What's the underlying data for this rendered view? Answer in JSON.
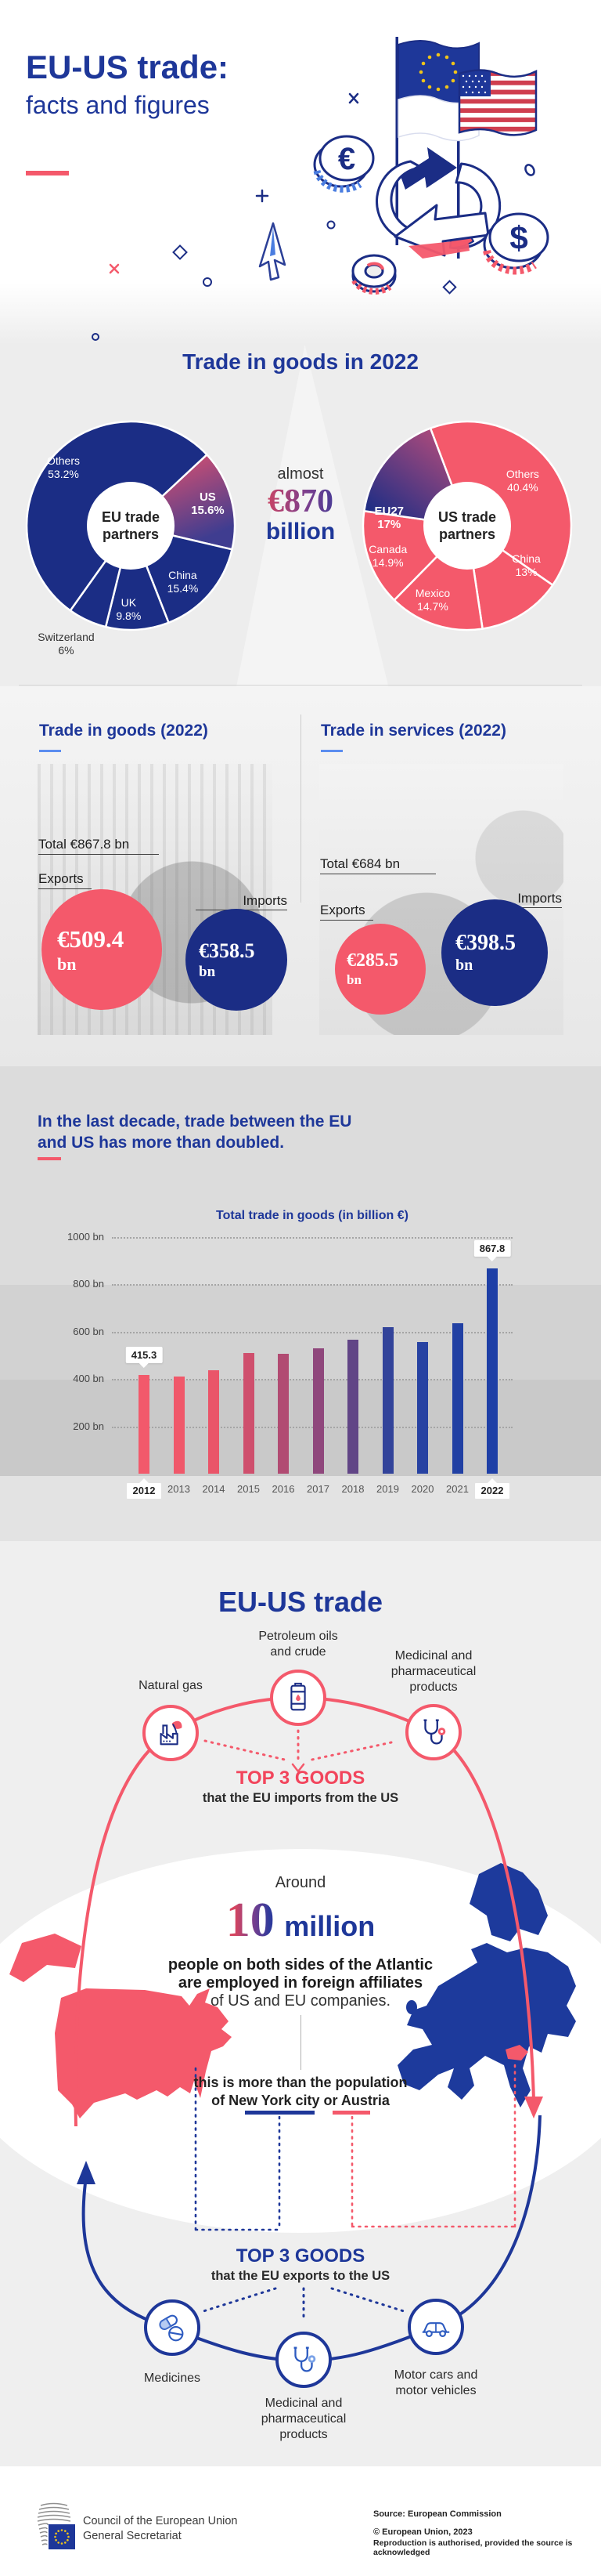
{
  "header": {
    "title_line1": "EU-US trade:",
    "title_line2": "facts and figures"
  },
  "goods_section": {
    "heading": "Trade in goods in 2022",
    "center_prefix": "almost",
    "center_amount": "€870",
    "center_unit": "billion",
    "eu_center_line1": "EU trade",
    "eu_center_line2": "partners",
    "us_center_line1": "US trade",
    "us_center_line2": "partners"
  },
  "cards": {
    "goods": {
      "title": "Trade in goods (2022)",
      "total": "Total €867.8 bn",
      "exports_label": "Exports",
      "exports_value": "€509.4",
      "exports_unit": "bn",
      "imports_label": "Imports",
      "imports_value": "€358.5",
      "imports_unit": "bn"
    },
    "services": {
      "title": "Trade in services (2022)",
      "total": "Total €684 bn",
      "exports_label": "Exports",
      "exports_value": "€285.5",
      "exports_unit": "bn",
      "imports_label": "Imports",
      "imports_value": "€398.5",
      "imports_unit": "bn"
    }
  },
  "decade_section": {
    "heading_line1": "In the last decade, trade between the EU",
    "heading_line2": "and US has more than doubled."
  },
  "flow_section": {
    "heading": "EU-US trade",
    "imports_top3": {
      "title": "TOP 3 GOODS",
      "subtitle": "that the EU imports from the US",
      "item1": "Natural gas",
      "item2": "Petroleum oils and crude",
      "item3": "Medicinal and pharmaceutical products"
    },
    "employment": {
      "around": "Around",
      "big_number": "10",
      "big_unit": "million",
      "line1": "people on both sides of the Atlantic",
      "line2": "are employed in foreign affiliates",
      "line3": "of US and EU companies.",
      "compare_line1": "this is more than the population",
      "compare_line2": "of New York city or Austria"
    },
    "exports_top3": {
      "title": "TOP 3 GOODS",
      "subtitle": "that the EU exports to the US",
      "item1": "Medicines",
      "item2": "Medicinal and pharmaceutical products",
      "item3": "Motor cars and motor vehicles"
    }
  },
  "footer": {
    "org_line1": "Council of the European Union",
    "org_line2": "General Secretariat",
    "source": "Source: European Commission",
    "copyright": "© European Union, 2023",
    "note": "Reproduction is authorised, provided the source is acknowledged"
  },
  "colors": {
    "blue": "#1e3799",
    "navy": "#1b2d85",
    "red": "#f4596b",
    "text_dark": "#222222"
  },
  "chart_data": [
    {
      "type": "pie",
      "name": "eu-trade-partners",
      "center_label": "EU trade partners",
      "slices": [
        {
          "label": "US",
          "value": 15.6,
          "pct_text": "15.6%",
          "color": "gradient-us",
          "text_color": "#ffffff",
          "bold": true
        },
        {
          "label": "China",
          "value": 15.4,
          "pct_text": "15.4%",
          "color": "#1b2d85",
          "text_color": "#ffffff"
        },
        {
          "label": "UK",
          "value": 9.8,
          "pct_text": "9.8%",
          "color": "#1b2d85",
          "text_color": "#ffffff"
        },
        {
          "label": "Switzerland",
          "value": 6,
          "pct_text": "6%",
          "color": "#1b2d85",
          "text_color": "#333333"
        },
        {
          "label": "Others",
          "value": 53.2,
          "pct_text": "53.2%",
          "color": "#1b2d85",
          "text_color": "#ffffff"
        }
      ]
    },
    {
      "type": "pie",
      "name": "us-trade-partners",
      "center_label": "US trade partners",
      "slices": [
        {
          "label": "Others",
          "value": 40.4,
          "pct_text": "40.4%",
          "color": "#f4596b",
          "text_color": "#ffffff"
        },
        {
          "label": "China",
          "value": 13,
          "pct_text": "13%",
          "color": "#f4596b",
          "text_color": "#ffffff"
        },
        {
          "label": "Mexico",
          "value": 14.7,
          "pct_text": "14.7%",
          "color": "#f4596b",
          "text_color": "#ffffff"
        },
        {
          "label": "Canada",
          "value": 14.9,
          "pct_text": "14.9%",
          "color": "#f4596b",
          "text_color": "#ffffff"
        },
        {
          "label": "EU27",
          "value": 17,
          "pct_text": "17%",
          "color": "gradient-eu27",
          "text_color": "#ffffff",
          "bold": true
        }
      ]
    },
    {
      "type": "bar",
      "name": "total-trade-in-goods",
      "title": "Total trade in goods (in billion €)",
      "categories": [
        "2012",
        "2013",
        "2014",
        "2015",
        "2016",
        "2017",
        "2018",
        "2019",
        "2020",
        "2021",
        "2022"
      ],
      "values": [
        415.3,
        410,
        438,
        510,
        507,
        528,
        566,
        620,
        556,
        636,
        867.8
      ],
      "bar_colors": [
        "#f2596b",
        "#f0586a",
        "#ea5569",
        "#cf4f6d",
        "#b14b72",
        "#8f477c",
        "#614586",
        "#32439a",
        "#2742a2",
        "#2140a3",
        "#1e3fa6"
      ],
      "yticks": [
        {
          "value": 200,
          "label": "200 bn"
        },
        {
          "value": 400,
          "label": "400 bn"
        },
        {
          "value": 600,
          "label": "600 bn"
        },
        {
          "value": 800,
          "label": "800 bn"
        },
        {
          "value": 1000,
          "label": "1000 bn"
        }
      ],
      "ylim": [
        0,
        1000
      ],
      "annotations": [
        {
          "category": "2012",
          "text": "415.3"
        },
        {
          "category": "2022",
          "text": "867.8"
        }
      ],
      "highlight_categories": [
        "2012",
        "2022"
      ]
    }
  ]
}
